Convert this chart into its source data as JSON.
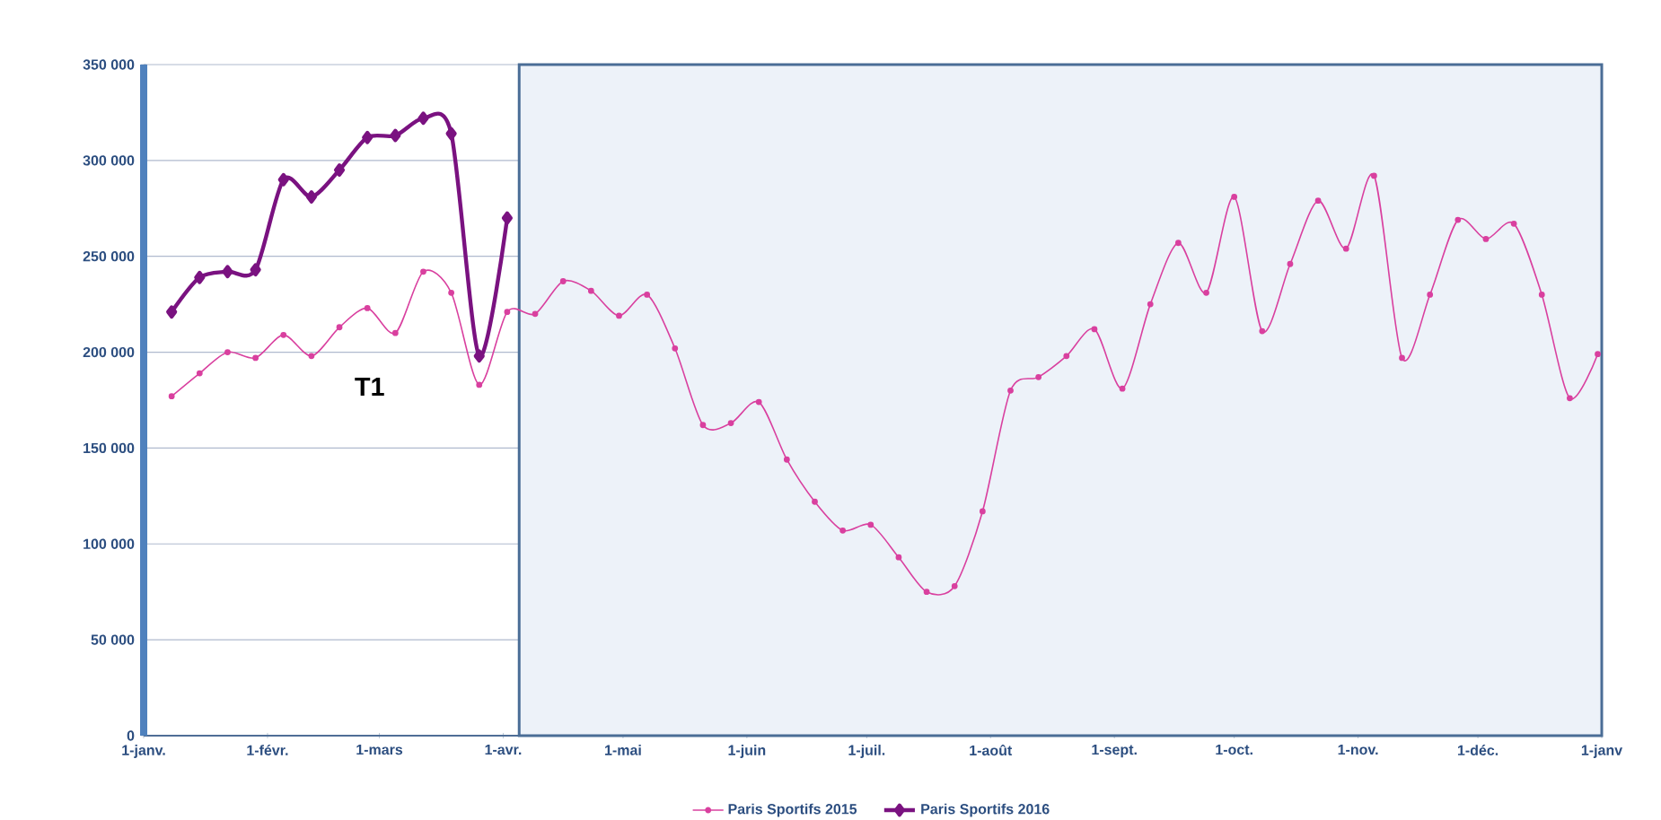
{
  "chart_data": {
    "type": "line",
    "annotations": [
      "T1"
    ],
    "series": [
      {
        "name": "Paris Sportifs 2015",
        "color": "#d9409f",
        "marker": "circle",
        "x": [
          "2015-01-08",
          "2015-01-15",
          "2015-01-22",
          "2015-01-29",
          "2015-02-05",
          "2015-02-12",
          "2015-02-19",
          "2015-02-26",
          "2015-03-05",
          "2015-03-12",
          "2015-03-19",
          "2015-03-26",
          "2015-04-02",
          "2015-04-09",
          "2015-04-16",
          "2015-04-23",
          "2015-04-30",
          "2015-05-07",
          "2015-05-14",
          "2015-05-21",
          "2015-05-28",
          "2015-06-04",
          "2015-06-11",
          "2015-06-18",
          "2015-06-25",
          "2015-07-02",
          "2015-07-09",
          "2015-07-16",
          "2015-07-23",
          "2015-07-30",
          "2015-08-06",
          "2015-08-13",
          "2015-08-20",
          "2015-08-27",
          "2015-09-03",
          "2015-09-10",
          "2015-09-17",
          "2015-09-24",
          "2015-10-01",
          "2015-10-08",
          "2015-10-15",
          "2015-10-22",
          "2015-10-29",
          "2015-11-05",
          "2015-11-12",
          "2015-11-19",
          "2015-11-26",
          "2015-12-03",
          "2015-12-10",
          "2015-12-17",
          "2015-12-24",
          "2015-12-31"
        ],
        "values": [
          177000,
          189000,
          200000,
          197000,
          209000,
          198000,
          213000,
          223000,
          210000,
          242000,
          231000,
          183000,
          221000,
          220000,
          237000,
          232000,
          219000,
          230000,
          202000,
          162000,
          163000,
          174000,
          144000,
          122000,
          107000,
          110000,
          93000,
          75000,
          78000,
          117000,
          180000,
          187000,
          198000,
          212000,
          181000,
          225000,
          257000,
          231000,
          281000,
          211000,
          246000,
          279000,
          254000,
          292000,
          197000,
          230000,
          269000,
          259000,
          267000,
          230000,
          176000,
          199000
        ]
      },
      {
        "name": "Paris Sportifs 2016",
        "color": "#7a1280",
        "marker": "diamond",
        "x": [
          "2015-01-08",
          "2015-01-15",
          "2015-01-22",
          "2015-01-29",
          "2015-02-05",
          "2015-02-12",
          "2015-02-19",
          "2015-02-26",
          "2015-03-05",
          "2015-03-12",
          "2015-03-19",
          "2015-03-26",
          "2015-04-02"
        ],
        "values": [
          221000,
          239000,
          242000,
          243000,
          290000,
          281000,
          295000,
          312000,
          313000,
          322000,
          314000,
          198000,
          270000
        ]
      }
    ],
    "bands": [
      {
        "axis": "x",
        "from": "2015-04-05",
        "to": "2016-01-01",
        "color": "#edf2f9"
      }
    ],
    "xlim": [
      "2015-01-01",
      "2016-01-01"
    ],
    "xticks": [
      {
        "value": "2015-01-01",
        "label": "1-janv."
      },
      {
        "value": "2015-02-01",
        "label": "1-févr."
      },
      {
        "value": "2015-03-01",
        "label": "1-mars"
      },
      {
        "value": "2015-04-01",
        "label": "1-avr."
      },
      {
        "value": "2015-05-01",
        "label": "1-mai"
      },
      {
        "value": "2015-06-01",
        "label": "1-juin"
      },
      {
        "value": "2015-07-01",
        "label": "1-juil."
      },
      {
        "value": "2015-08-01",
        "label": "1-août"
      },
      {
        "value": "2015-09-01",
        "label": "1-sept."
      },
      {
        "value": "2015-10-01",
        "label": "1-oct."
      },
      {
        "value": "2015-11-01",
        "label": "1-nov."
      },
      {
        "value": "2015-12-01",
        "label": "1-déc."
      },
      {
        "value": "2016-01-01",
        "label": "1-janv"
      }
    ],
    "ylim": [
      0,
      350000
    ],
    "yticks": [
      0,
      {
        "value": 50000,
        "label": "50 000"
      },
      {
        "value": 100000,
        "label": "100 000"
      },
      {
        "value": 150000,
        "label": "150 000"
      },
      {
        "value": 200000,
        "label": "200 000"
      },
      {
        "value": 250000,
        "label": "250 000"
      },
      {
        "value": 300000,
        "label": "300 000"
      },
      {
        "value": 350000,
        "label": "350 000"
      }
    ],
    "grid": "y",
    "legend": "bottom"
  }
}
